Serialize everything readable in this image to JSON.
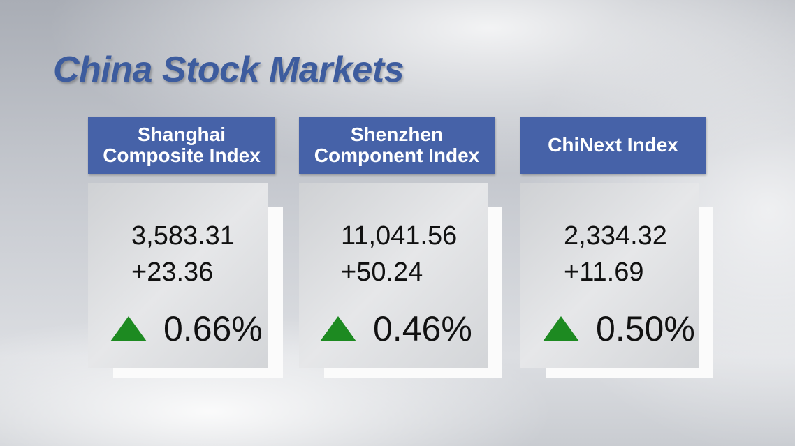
{
  "title": "China Stock Markets",
  "indices": [
    {
      "name": "Shanghai Composite Index",
      "value": "3,583.31",
      "change": "+23.36",
      "percent": "0.66%"
    },
    {
      "name": "Shenzhen Component Index",
      "value": "11,041.56",
      "change": "+50.24",
      "percent": "0.46%"
    },
    {
      "name": "ChiNext Index",
      "value": "2,334.32",
      "change": "+11.69",
      "percent": "0.50%"
    }
  ]
}
